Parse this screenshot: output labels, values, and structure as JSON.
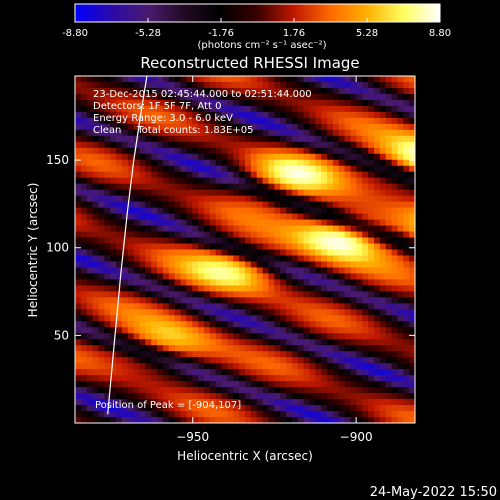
{
  "colorbar": {
    "tick_labels": [
      "-8.80",
      "-5.28",
      "-1.76",
      "1.76",
      "5.28",
      "8.80"
    ],
    "range": [
      -8.8,
      8.8
    ],
    "unit_label": "(photons cm⁻² s⁻¹ asec⁻²)",
    "colormap": [
      "#0000ff",
      "#2a0aa8",
      "#4a1a70",
      "#220a22",
      "#000000",
      "#3a0000",
      "#c01800",
      "#ff6a00",
      "#ffb000",
      "#ffff60",
      "#ffffff"
    ]
  },
  "info": {
    "time_range": "23-Dec-2015 02:45:44.000 to 02:51:44.000",
    "detectors": "Detectors: 1F 5F 7F, Att 0",
    "energy": "Energy Range: 3.0 - 6.0 keV",
    "method": "Clean     Total counts: 1.83E+05",
    "peak": "Position of Peak = [-904,107]"
  },
  "footer": {
    "date": "24-May-2022 15:50"
  },
  "chart_data": {
    "type": "heatmap",
    "title": "Reconstructed RHESSI Image",
    "xlabel": "Heliocentric X (arcsec)",
    "ylabel": "Heliocentric Y (arcsec)",
    "xlim": [
      -986,
      -882
    ],
    "ylim": [
      0,
      198
    ],
    "xticks": [
      -950,
      -900,
      -850
    ],
    "yticks": [
      50,
      100,
      150
    ],
    "peak": {
      "x": -904,
      "y": 107
    },
    "limb_curve": {
      "x": [
        -976,
        -974,
        -972,
        -970,
        -968,
        -966,
        -964
      ],
      "y": [
        5,
        45,
        85,
        120,
        150,
        175,
        198
      ]
    },
    "stripe_angle_deg": 55,
    "stripe_wavelength_arcsec": 32,
    "blobs": [
      {
        "x": -904,
        "y": 107,
        "amp": 9.0
      },
      {
        "x": -880,
        "y": 150,
        "amp": 8.2
      },
      {
        "x": -937,
        "y": 87,
        "amp": 6.2
      },
      {
        "x": -868,
        "y": 108,
        "amp": 6.5
      },
      {
        "x": -958,
        "y": 45,
        "amp": 5.8
      },
      {
        "x": -920,
        "y": 140,
        "amp": 5.5
      },
      {
        "x": -850,
        "y": 170,
        "amp": 5.0
      }
    ]
  }
}
